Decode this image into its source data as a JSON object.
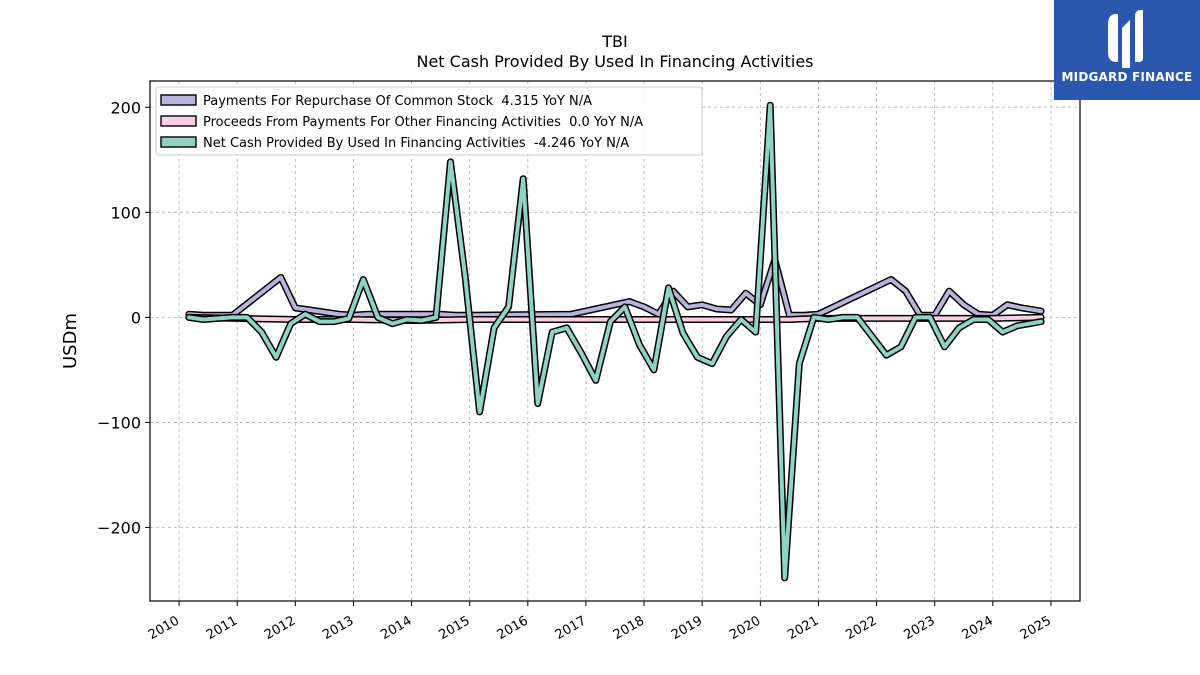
{
  "chart_data": {
    "type": "line",
    "title": "TBI",
    "subtitle": "Net Cash Provided By Used In Financing Activities",
    "ylabel": "USDm",
    "xlabel": "",
    "xlim": [
      2009.5,
      2025.5
    ],
    "ylim": [
      -270,
      225
    ],
    "grid": true,
    "legend_position": "top-left",
    "x_ticks": [
      "2010",
      "2011",
      "2012",
      "2013",
      "2014",
      "2015",
      "2016",
      "2017",
      "2018",
      "2019",
      "2020",
      "2021",
      "2022",
      "2023",
      "2024",
      "2025"
    ],
    "y_ticks": [
      {
        "value": 200,
        "label": "200"
      },
      {
        "value": 100,
        "label": "100"
      },
      {
        "value": 0,
        "label": "0"
      },
      {
        "value": -100,
        "label": "−100"
      },
      {
        "value": -200,
        "label": "−200"
      }
    ],
    "series": [
      {
        "name": "Payments For Repurchase Of Common Stock",
        "legend": "Payments For Repurchase Of Common Stock  4.315 YoY N/A",
        "color": "#b8b5dc",
        "x": [
          2010.17,
          2010.42,
          2010.67,
          2010.92,
          2011.75,
          2012.0,
          2012.25,
          2012.5,
          2012.75,
          2013.0,
          2013.25,
          2014.5,
          2014.75,
          2015.0,
          2016.75,
          2017.75,
          2018.0,
          2018.25,
          2018.5,
          2018.75,
          2019.0,
          2019.25,
          2019.5,
          2019.75,
          2020.0,
          2020.25,
          2020.5,
          2020.75,
          2021.0,
          2022.25,
          2022.5,
          2022.75,
          2023.0,
          2023.25,
          2023.5,
          2023.75,
          2024.0,
          2024.25,
          2024.5,
          2024.83
        ],
        "y": [
          3,
          2,
          2,
          2,
          38,
          9,
          7,
          5,
          3,
          2,
          3,
          3,
          2,
          2,
          3,
          15,
          10,
          3,
          25,
          10,
          12,
          8,
          7,
          23,
          12,
          55,
          2,
          2,
          3,
          36,
          25,
          2,
          2,
          25,
          12,
          3,
          2,
          12,
          9,
          6
        ]
      },
      {
        "name": "Proceeds From Payments For Other Financing Activities",
        "legend": "Proceeds From Payments For Other Financing Activities  0.0 YoY N/A",
        "color": "#f9d0e3",
        "x": [
          2010.17,
          2011.0,
          2012.0,
          2013.0,
          2014.0,
          2015.0,
          2016.0,
          2017.0,
          2018.0,
          2019.0,
          2020.0,
          2020.5,
          2021.0,
          2022.0,
          2023.0,
          2024.0,
          2024.83
        ],
        "y": [
          0,
          -1,
          -2,
          -2,
          -3,
          -2,
          -2,
          -2,
          -2,
          -2,
          -2,
          -2,
          -1,
          -1,
          -1,
          -1,
          0
        ]
      },
      {
        "name": "Net Cash Provided By Used In Financing Activities",
        "legend": "Net Cash Provided By Used In Financing Activities  -4.246 YoY N/A",
        "color": "#8fd3c5",
        "x": [
          2010.17,
          2010.42,
          2010.67,
          2010.92,
          2011.17,
          2011.42,
          2011.67,
          2011.92,
          2012.17,
          2012.42,
          2012.67,
          2012.92,
          2013.17,
          2013.42,
          2013.67,
          2013.92,
          2014.17,
          2014.42,
          2014.67,
          2014.92,
          2015.17,
          2015.42,
          2015.67,
          2015.92,
          2016.17,
          2016.42,
          2016.67,
          2016.92,
          2017.17,
          2017.42,
          2017.67,
          2017.92,
          2018.17,
          2018.42,
          2018.67,
          2018.92,
          2019.17,
          2019.42,
          2019.67,
          2019.92,
          2020.17,
          2020.42,
          2020.67,
          2020.92,
          2021.17,
          2021.42,
          2021.67,
          2021.92,
          2022.17,
          2022.42,
          2022.67,
          2022.92,
          2023.17,
          2023.42,
          2023.67,
          2023.92,
          2024.17,
          2024.42,
          2024.83
        ],
        "y": [
          0,
          -2,
          -1,
          0,
          0,
          -14,
          -38,
          -6,
          3,
          -4,
          -4,
          -1,
          36,
          0,
          -6,
          -2,
          -3,
          0,
          148,
          40,
          -90,
          -10,
          10,
          132,
          -82,
          -14,
          -10,
          -34,
          -60,
          -4,
          10,
          -26,
          -50,
          28,
          -15,
          -38,
          -44,
          -18,
          -2,
          -14,
          202,
          -248,
          -44,
          0,
          -2,
          0,
          0,
          -18,
          -36,
          -28,
          0,
          0,
          -28,
          -10,
          -2,
          -2,
          -14,
          -8,
          -4
        ]
      }
    ]
  },
  "logo": {
    "text": "MIDGARD FINANCE"
  }
}
